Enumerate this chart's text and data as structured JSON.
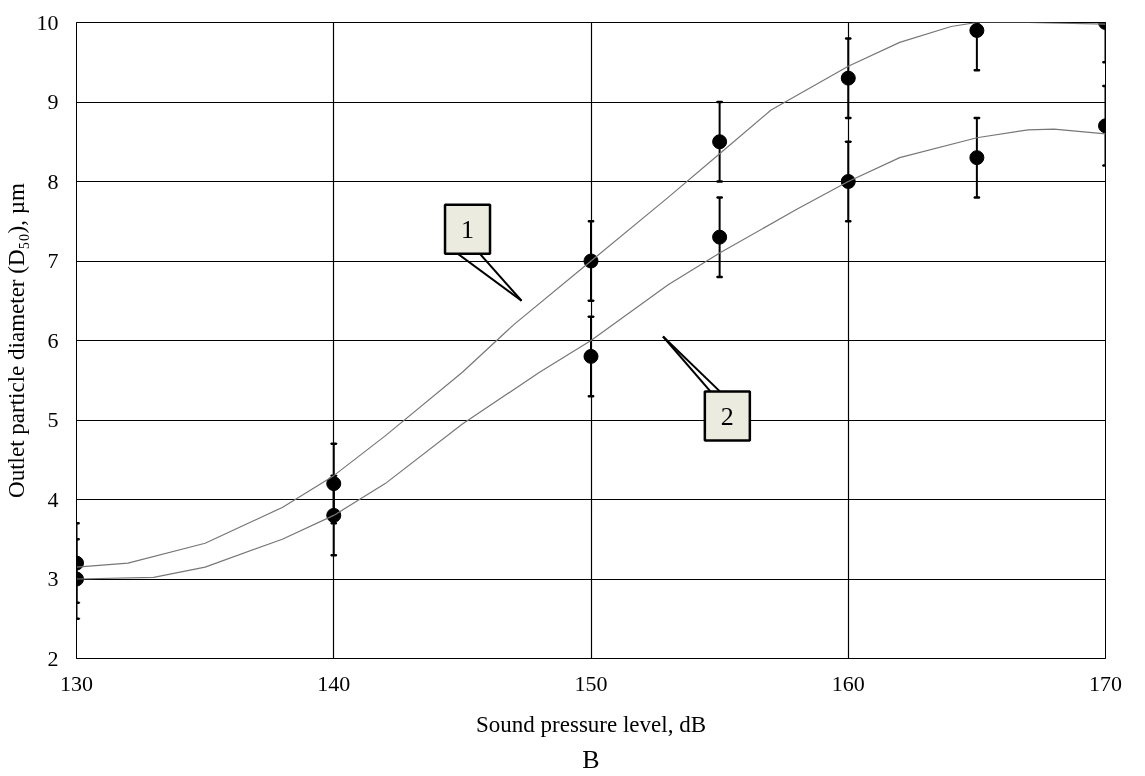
{
  "chart_data": {
    "type": "scatter",
    "xlabel": "Sound pressure level, dB",
    "ylabel": "Outlet particle diameter (D₅₀), µm",
    "x": [
      130,
      140,
      150,
      155,
      160,
      165,
      170
    ],
    "series": [
      {
        "color": "#000000",
        "marker": "circle",
        "values": [
          3.2,
          4.2,
          7.0,
          8.5,
          9.3,
          9.9,
          10.0
        ],
        "errors": [
          0.5,
          0.5,
          0.5,
          0.5,
          0.5,
          [
            9.4,
            10.0
          ],
          [
            9.5,
            10.0
          ]
        ]
      },
      {
        "color": "#000000",
        "marker": "circle",
        "values": [
          3.0,
          3.8,
          5.8,
          7.3,
          8.0,
          8.3,
          8.7
        ],
        "errors": [
          0.5,
          0.5,
          0.5,
          0.5,
          0.5,
          0.5,
          0.5
        ]
      },
      {
        "type": "line",
        "color": "#777777",
        "x": [
          130,
          132,
          135,
          138,
          140,
          142,
          145,
          147,
          150,
          153,
          155,
          157,
          160,
          162,
          164,
          165,
          167,
          170
        ],
        "values": [
          3.15,
          3.2,
          3.45,
          3.9,
          4.3,
          4.8,
          5.6,
          6.2,
          7.0,
          7.8,
          8.35,
          8.9,
          9.45,
          9.75,
          9.95,
          10.0,
          10.0,
          9.98
        ]
      },
      {
        "type": "line",
        "color": "#777777",
        "x": [
          130,
          133,
          135,
          138,
          140,
          142,
          145,
          148,
          150,
          153,
          155,
          158,
          160,
          162,
          165,
          167,
          168,
          170
        ],
        "values": [
          3.0,
          3.02,
          3.15,
          3.5,
          3.8,
          4.2,
          4.95,
          5.6,
          6.0,
          6.7,
          7.1,
          7.65,
          8.0,
          8.3,
          8.55,
          8.65,
          8.66,
          8.6
        ]
      }
    ],
    "xlim": [
      130,
      170
    ],
    "xticks": [
      130,
      140,
      150,
      160,
      170
    ],
    "ylim": [
      2,
      10
    ],
    "yticks": [
      2,
      3,
      4,
      5,
      6,
      7,
      8,
      9,
      10
    ],
    "grid": true,
    "annotations": [
      "1",
      "2",
      "B"
    ]
  }
}
